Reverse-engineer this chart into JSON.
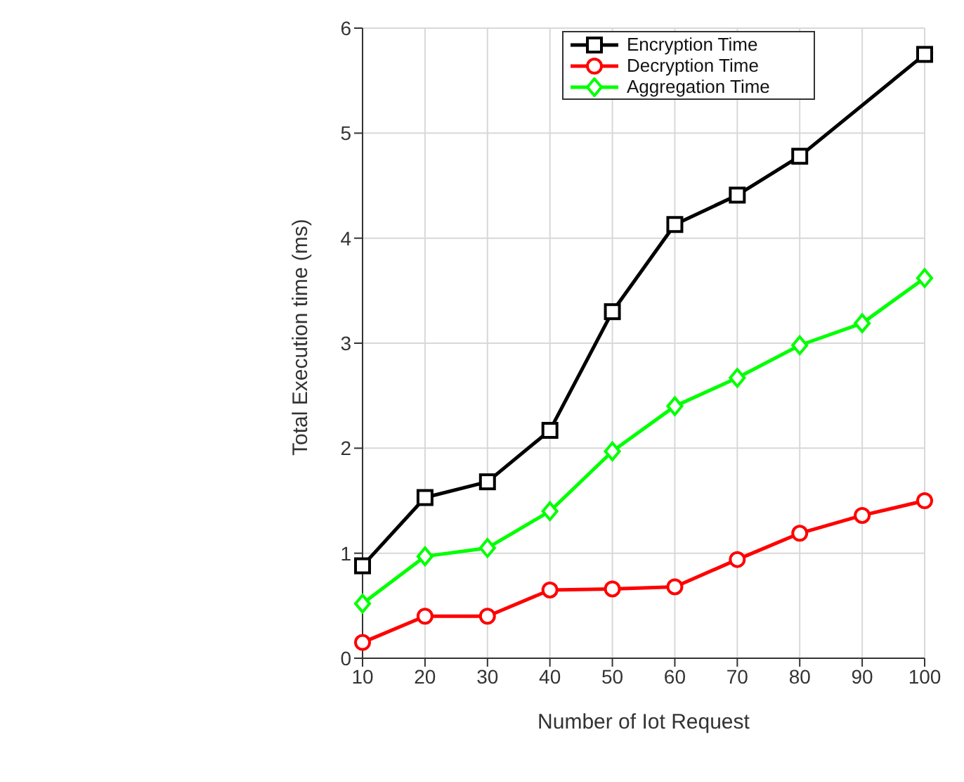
{
  "chart_data": {
    "type": "line",
    "xlabel": "Number of Iot Request",
    "ylabel": "Total Execution time (ms)",
    "x": [
      10,
      20,
      30,
      40,
      50,
      60,
      70,
      80,
      90,
      100
    ],
    "xlim": [
      10,
      100
    ],
    "xticks": [
      10,
      20,
      30,
      40,
      50,
      60,
      70,
      80,
      90,
      100
    ],
    "ylim": [
      0,
      6
    ],
    "yticks": [
      0,
      1,
      2,
      3,
      4,
      5,
      6
    ],
    "grid": true,
    "legend": "top right",
    "line_style": "solid",
    "series": [
      {
        "name": "Encryption Time",
        "color": "#000000",
        "marker": "square",
        "values": [
          0.88,
          1.53,
          1.68,
          2.17,
          3.3,
          4.13,
          4.41,
          4.78,
          null,
          5.75
        ]
      },
      {
        "name": "Decryption Time",
        "color": "#ff0000",
        "marker": "circle",
        "values": [
          0.15,
          0.4,
          0.4,
          0.65,
          0.66,
          0.68,
          0.94,
          1.19,
          1.36,
          1.5
        ]
      },
      {
        "name": "Aggregation Time",
        "color": "#00ff00",
        "marker": "diamond",
        "values": [
          0.52,
          0.97,
          1.05,
          1.4,
          1.97,
          2.4,
          2.67,
          2.98,
          3.19,
          3.62
        ]
      }
    ]
  }
}
